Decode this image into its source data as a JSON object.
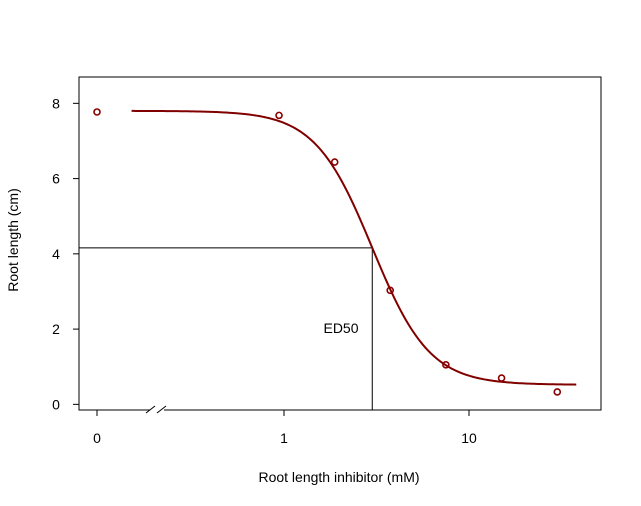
{
  "chart_data": {
    "type": "scatter",
    "title": "",
    "xlabel": "Root length inhibitor (mM)",
    "ylabel": "Root length (cm)",
    "x_scale": "log",
    "x_axis_break": true,
    "xticks": [
      {
        "value": 0,
        "label": "0"
      },
      {
        "value": 1,
        "label": "1"
      },
      {
        "value": 10,
        "label": "10"
      }
    ],
    "yticks": [
      {
        "value": 0,
        "label": "0"
      },
      {
        "value": 2,
        "label": "2"
      },
      {
        "value": 4,
        "label": "4"
      },
      {
        "value": 6,
        "label": "6"
      },
      {
        "value": 8,
        "label": "8"
      }
    ],
    "ylim": [
      -0.15,
      8.7
    ],
    "grid": false,
    "series": [
      {
        "type": "points",
        "x": [
          0,
          0.94,
          1.88,
          3.75,
          7.5,
          15,
          30
        ],
        "y": [
          7.77,
          7.68,
          6.44,
          3.03,
          1.05,
          0.7,
          0.33
        ]
      },
      {
        "type": "fitted-curve",
        "x_range": [
          0.15,
          38
        ],
        "params": {
          "upper": 7.8,
          "lower": 0.52,
          "ed50": 3.0,
          "slope": 2.8
        }
      }
    ],
    "ed50": {
      "label": "ED50",
      "x": 3.0,
      "y": 4.16
    },
    "colors": {
      "points": "#8B0000",
      "curve": "#800000",
      "axes": "#000000"
    }
  }
}
